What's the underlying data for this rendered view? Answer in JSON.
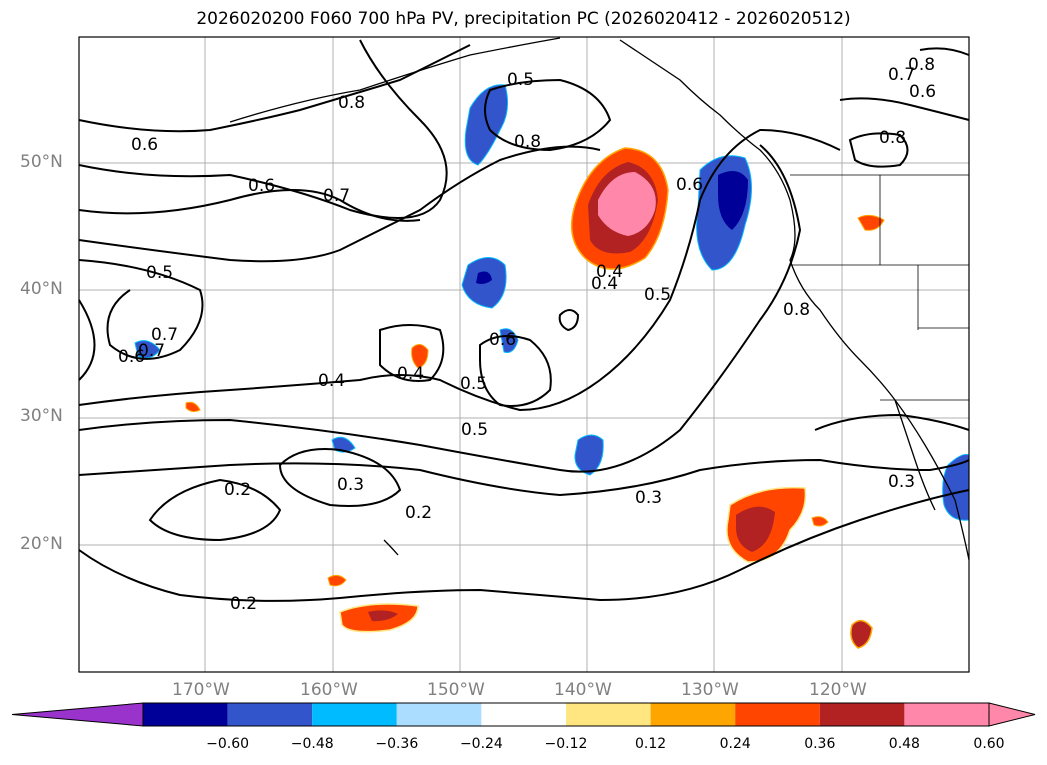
{
  "title": "2026020200 F060 700 hPa PV, precipitation PC (2026020412 - 2026020512)",
  "lat_labels": [
    "50°N",
    "40°N",
    "30°N",
    "20°N"
  ],
  "lon_labels": [
    "170°W",
    "160°W",
    "150°W",
    "140°W",
    "130°W",
    "120°W"
  ],
  "contour_labels": [
    "0.6",
    "0.8",
    "0.7",
    "0.5",
    "0.5",
    "0.8",
    "0.8",
    "0.4",
    "0.8",
    "0.7",
    "0.6",
    "0.7",
    "0.6",
    "0.6",
    "0.5",
    "0.7",
    "0.6",
    "0.6",
    "0.4",
    "0.4",
    "0.4",
    "0.5",
    "0.5",
    "0.2",
    "0.3",
    "0.2",
    "0.2",
    "0.3",
    "0.3",
    "0.8"
  ],
  "colorbar": {
    "ticks": [
      "−0.60",
      "−0.48",
      "−0.36",
      "−0.24",
      "−0.12",
      "0.12",
      "0.24",
      "0.36",
      "0.48",
      "0.60"
    ],
    "colors": [
      "#9933cc",
      "#000099",
      "#3355cc",
      "#00bbff",
      "#aaddff",
      "#ffffff",
      "#ffe680",
      "#ffa500",
      "#ff4500",
      "#b22222",
      "#ff88aa",
      "#ff88aa"
    ]
  },
  "colors": {
    "blue_light": "#aaddff",
    "blue_mid": "#3355cc",
    "blue_dark": "#000099",
    "cyan": "#00bbff",
    "yellow": "#ffe680",
    "orange": "#ffa500",
    "red_orange": "#ff4500",
    "dark_red": "#b22222",
    "pink": "#ff88aa"
  }
}
